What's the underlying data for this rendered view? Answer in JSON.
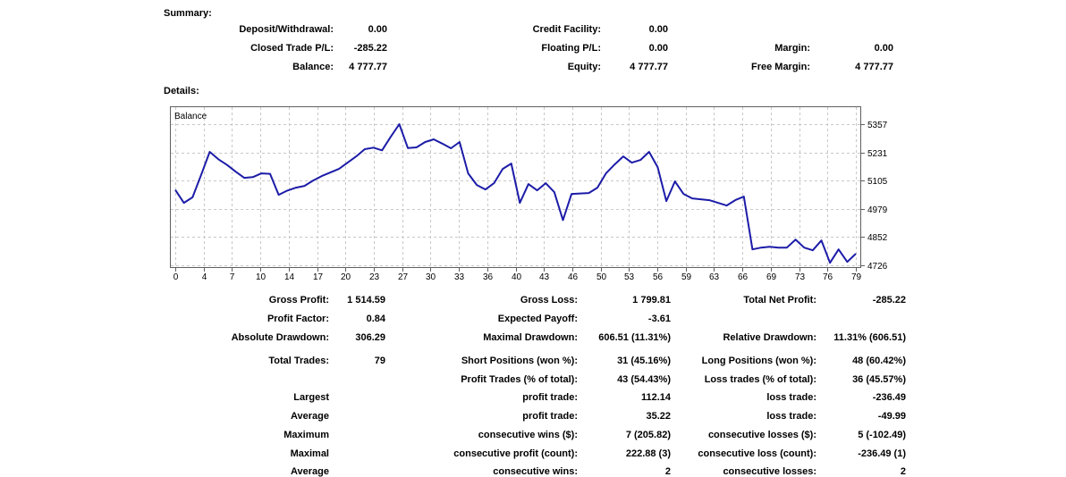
{
  "summary": {
    "heading": "Summary:",
    "rows": [
      {
        "c1l": "Deposit/Withdrawal:",
        "c1v": "0.00",
        "c2l": "Credit Facility:",
        "c2v": "0.00"
      },
      {
        "c1l": "Closed Trade P/L:",
        "c1v": "-285.22",
        "c2l": "Floating P/L:",
        "c2v": "0.00",
        "c3l": "Margin:",
        "c3v": "0.00"
      },
      {
        "c1l": "Balance:",
        "c1v": "4 777.77",
        "c2l": "Equity:",
        "c2v": "4 777.77",
        "c3l": "Free Margin:",
        "c3v": "4 777.77"
      }
    ]
  },
  "details": {
    "heading": "Details:",
    "rows": [
      {
        "c1l": "Gross Profit:",
        "c1v": "1 514.59",
        "c2l": "Gross Loss:",
        "c2v": "1 799.81",
        "c3l": "Total Net Profit:",
        "c3v": "-285.22"
      },
      {
        "c1l": "Profit Factor:",
        "c1v": "0.84",
        "c2l": "Expected Payoff:",
        "c2v": "-3.61"
      },
      {
        "c1l": "Absolute Drawdown:",
        "c1v": "306.29",
        "c2l": "Maximal Drawdown:",
        "c2v": "606.51 (11.31%)",
        "c3l": "Relative Drawdown:",
        "c3v": "11.31% (606.51)"
      },
      {
        "c1l": "Total Trades:",
        "c1v": "79",
        "c2l": "Short Positions (won %):",
        "c2v": "31 (45.16%)",
        "c3l": "Long Positions (won %):",
        "c3v": "48 (60.42%)"
      },
      {
        "c2l": "Profit Trades (% of total):",
        "c2v": "43 (54.43%)",
        "c3l": "Loss trades (% of total):",
        "c3v": "36 (45.57%)"
      },
      {
        "c1l": "Largest",
        "c2l": "profit trade:",
        "c2v": "112.14",
        "c3l": "loss trade:",
        "c3v": "-236.49"
      },
      {
        "c1l": "Average",
        "c2l": "profit trade:",
        "c2v": "35.22",
        "c3l": "loss trade:",
        "c3v": "-49.99"
      },
      {
        "c1l": "Maximum",
        "c2l": "consecutive wins ($):",
        "c2v": "7 (205.82)",
        "c3l": "consecutive losses ($):",
        "c3v": "5 (-102.49)"
      },
      {
        "c1l": "Maximal",
        "c2l": "consecutive profit (count):",
        "c2v": "222.88 (3)",
        "c3l": "consecutive loss (count):",
        "c3v": "-236.49 (1)"
      },
      {
        "c1l": "Average",
        "c2l": "consecutive wins:",
        "c2v": "2",
        "c3l": "consecutive losses:",
        "c3v": "2"
      }
    ]
  },
  "chart_data": {
    "type": "line",
    "title": "Balance",
    "xlabel": "",
    "ylabel": "",
    "grid": true,
    "legend_position": "none",
    "line_color": "#1c1ca8",
    "grid_color": "#c8c8c8",
    "border_color": "#5f5f5f",
    "y_ticks": [
      5357,
      5231,
      5105,
      4979,
      4852,
      4726
    ],
    "x_ticks": [
      0,
      4,
      7,
      10,
      14,
      17,
      20,
      23,
      27,
      30,
      33,
      36,
      40,
      43,
      46,
      50,
      53,
      56,
      59,
      63,
      66,
      69,
      73,
      76,
      79
    ],
    "xlim": [
      0,
      79
    ],
    "ylim": [
      4714,
      5437
    ],
    "series": [
      {
        "name": "Balance",
        "values": [
          5063,
          5005,
          5030,
          5130,
          5233,
          5200,
          5175,
          5145,
          5117,
          5120,
          5137,
          5135,
          5041,
          5060,
          5073,
          5081,
          5105,
          5125,
          5141,
          5157,
          5185,
          5213,
          5245,
          5252,
          5240,
          5300,
          5357,
          5250,
          5253,
          5277,
          5289,
          5270,
          5249,
          5277,
          5137,
          5085,
          5065,
          5093,
          5157,
          5181,
          5005,
          5089,
          5061,
          5093,
          5053,
          4928,
          5045,
          5047,
          5049,
          5073,
          5137,
          5177,
          5213,
          5185,
          5197,
          5233,
          5165,
          5013,
          5101,
          5045,
          5025,
          5021,
          5017,
          5005,
          4993,
          5017,
          5033,
          4797,
          4805,
          4809,
          4805,
          4805,
          4841,
          4805,
          4793,
          4837,
          4737,
          4797,
          4741,
          4778
        ]
      }
    ]
  }
}
